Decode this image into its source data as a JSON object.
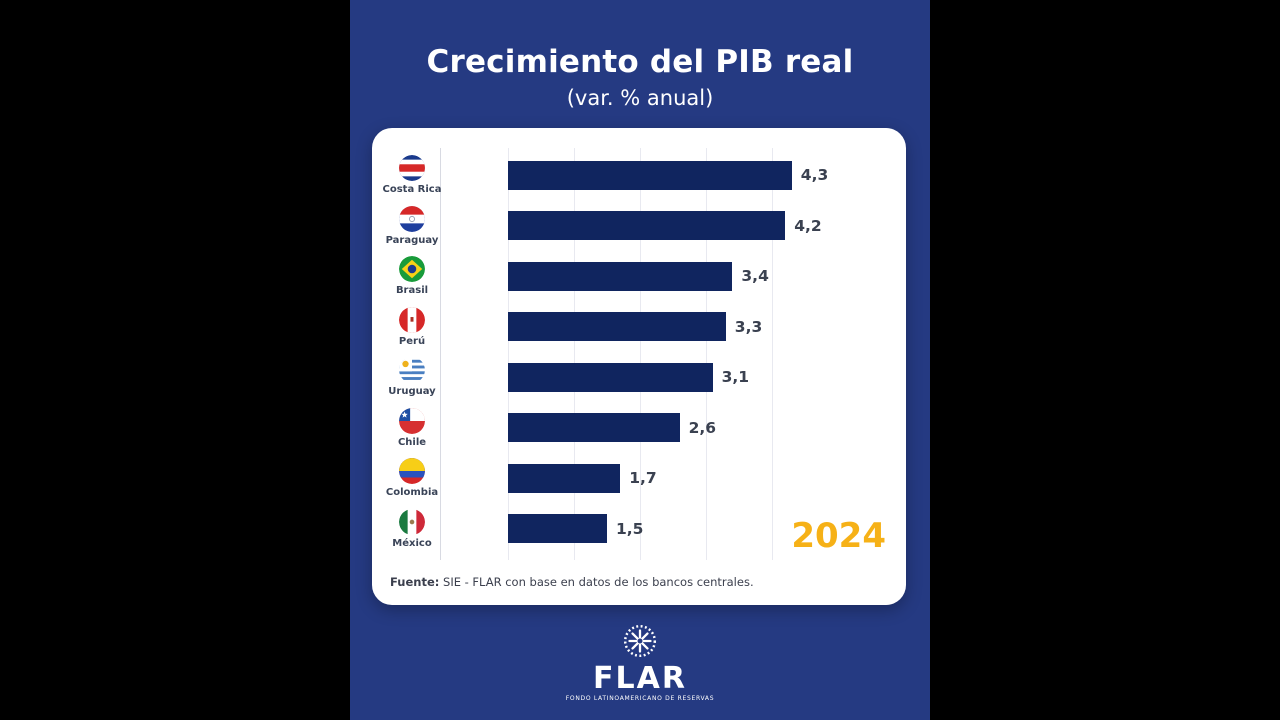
{
  "header": {
    "title": "Crecimiento del PIB real",
    "subtitle": "(var. % anual)"
  },
  "year_badge": "2024",
  "source": {
    "label": "Fuente:",
    "text": " SIE - FLAR con base en datos de los bancos centrales."
  },
  "logo": {
    "emblem_icon": "flar-wreath-star-emblem",
    "name": "FLAR",
    "tagline": "FONDO LATINOAMERICANO DE RESERVAS"
  },
  "colors": {
    "background": "#253a82",
    "card": "#ffffff",
    "bar": "#10255f",
    "value_label": "#3a4150",
    "country_label": "#394357",
    "year": "#f6b117",
    "grid": "#e8e9f0",
    "divider": "#d8dae2",
    "text_light": "#ffffff",
    "source_text": "#3b3f4d"
  },
  "chart_data": {
    "type": "bar",
    "orientation": "horizontal",
    "title": "Crecimiento del PIB real",
    "subtitle": "(var. % anual)",
    "year": "2024",
    "categories": [
      "Costa Rica",
      "Paraguay",
      "Brasil",
      "Perú",
      "Uruguay",
      "Chile",
      "Colombia",
      "México"
    ],
    "values": [
      4.3,
      4.2,
      3.4,
      3.3,
      3.1,
      2.6,
      1.7,
      1.5
    ],
    "value_labels": [
      "4,3",
      "4,2",
      "3,4",
      "3,3",
      "3,1",
      "2,6",
      "1,7",
      "1,5"
    ],
    "flag_icons": [
      "flag-costa-rica",
      "flag-paraguay",
      "flag-brasil",
      "flag-peru",
      "flag-uruguay",
      "flag-chile",
      "flag-colombia",
      "flag-mexico"
    ],
    "xlim": [
      0,
      4.5
    ],
    "gridlines": [
      0,
      1,
      2,
      3,
      4
    ],
    "legend": false,
    "source": "Fuente: SIE - FLAR con base en datos de los bancos centrales."
  }
}
